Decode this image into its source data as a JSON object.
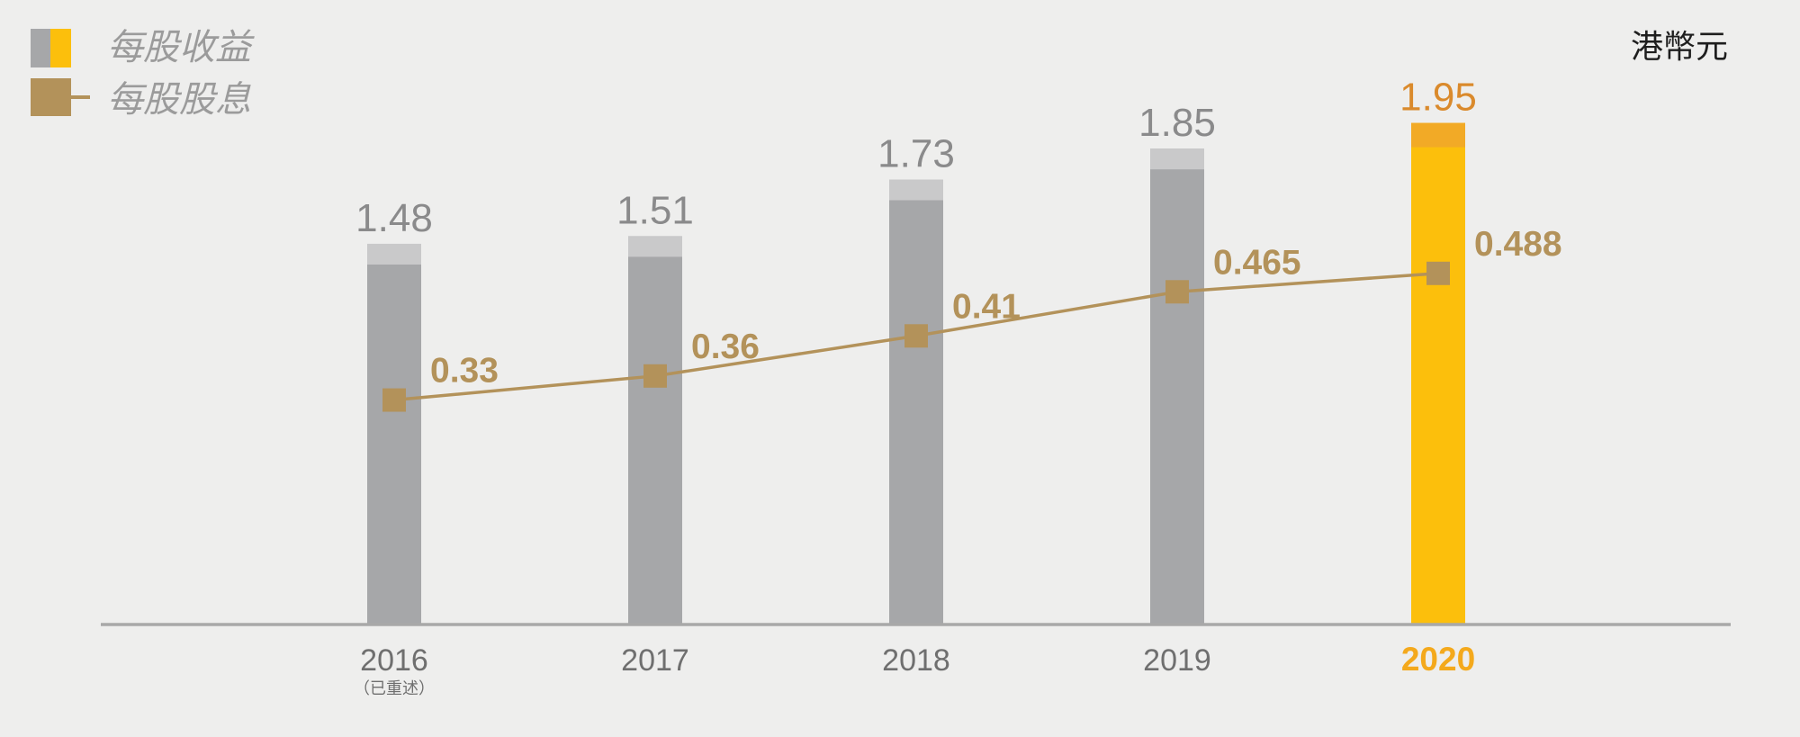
{
  "chart_data": {
    "type": "bar",
    "unit": "港幣元",
    "categories": [
      "2016",
      "2017",
      "2018",
      "2019",
      "2020"
    ],
    "category_notes": [
      {
        "index": 0,
        "text": "（已重述）"
      }
    ],
    "highlight_index": 4,
    "series": [
      {
        "name": "每股收益",
        "type": "bar",
        "values": [
          1.48,
          1.51,
          1.73,
          1.85,
          1.95
        ]
      },
      {
        "name": "每股股息",
        "type": "line",
        "values": [
          0.33,
          0.36,
          0.41,
          0.465,
          0.488
        ]
      }
    ],
    "ylim": [
      0,
      2.4
    ],
    "y2lim": [
      0.05,
      0.82
    ],
    "grid": false,
    "legend_position": "top-left",
    "colors": {
      "background": "#eeeeed",
      "bar": "#a6a7a9",
      "bar_cap": "#c9c9ca",
      "highlight_bar": "#fcbf0c",
      "highlight_bar_cap": "#f2aa26",
      "dividend": "#b3925a",
      "value_label": "#8a8a8b",
      "highlight_value_label": "#da8a2c",
      "tick_label": "#6f6f6f",
      "highlight_tick_label": "#f4a91c",
      "axis": "#a8a8a8",
      "legend_text": "#9b9b9b",
      "unit_text": "#1e1e1e"
    }
  }
}
